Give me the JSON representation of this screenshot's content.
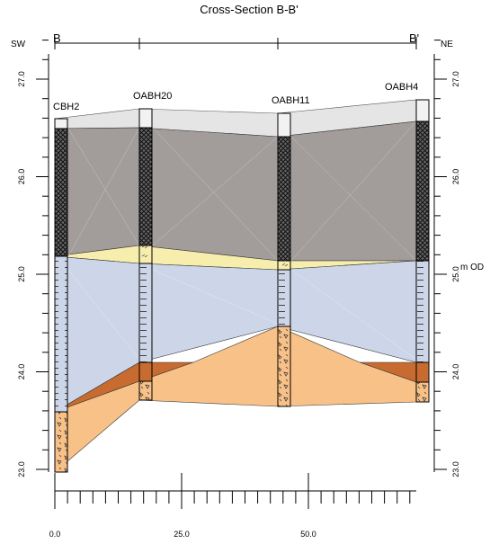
{
  "title": "Cross-Section B-B'",
  "section_start": "B",
  "section_end": "B'",
  "direction_left": "SW",
  "direction_right": "NE",
  "vertical_unit": "m OD",
  "left_axis_ticks": [
    "23.0",
    "24.0",
    "25.0",
    "26.0",
    "27.0"
  ],
  "right_axis_ticks": [
    "23.0",
    "24.0",
    "25.0",
    "26.0",
    "27.0"
  ],
  "bottom_axis_ticks": [
    "0.0",
    "25.0",
    "50.0"
  ],
  "boreholes": [
    "CBH2",
    "OABH20",
    "OABH11",
    "OABH4"
  ],
  "colors": {
    "made_ground": "#e5e5e5",
    "grey_layer": "#a29d9b",
    "peat_yellow": "#f7eeae",
    "clay_blue": "#cdd6e8",
    "sand_orange": "#f8c187",
    "dark_orange": "#c86b30"
  }
}
